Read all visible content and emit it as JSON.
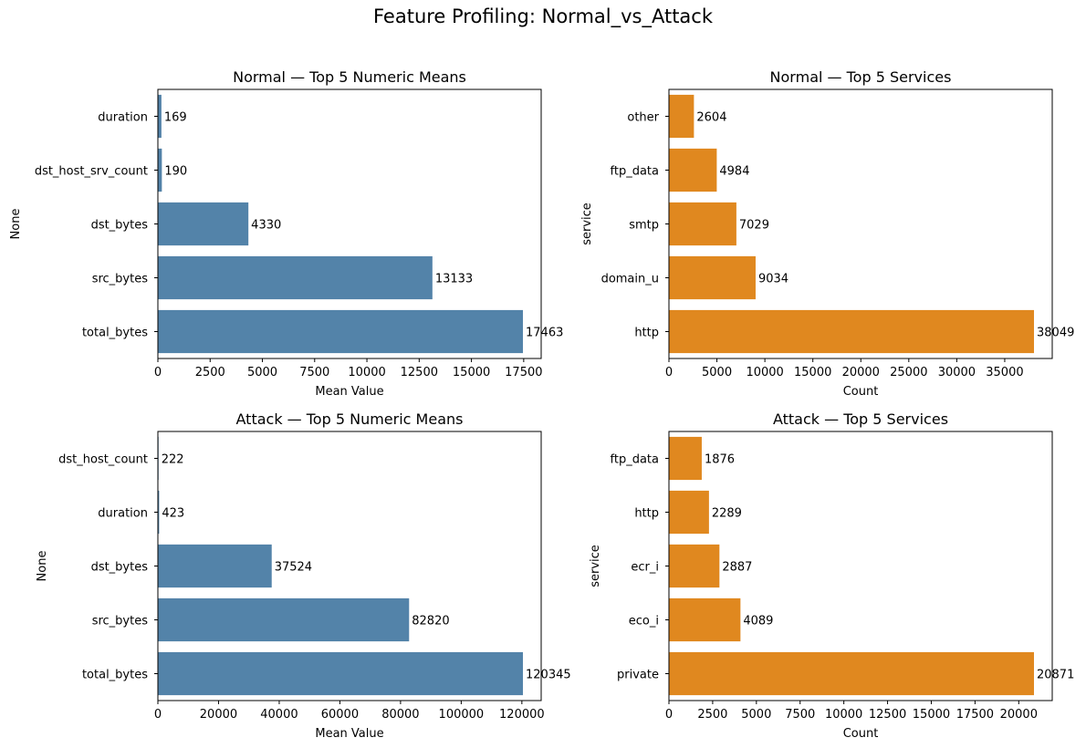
{
  "figure_title": "Feature Profiling: Normal_vs_Attack",
  "colors": {
    "numeric": "#5383a9",
    "services": "#e0881f"
  },
  "chart_data": [
    {
      "type": "bar",
      "orientation": "horizontal",
      "title": "Normal — Top 5 Numeric Means",
      "xlabel": "Mean Value",
      "ylabel": "None",
      "categories": [
        "duration",
        "dst_host_srv_count",
        "dst_bytes",
        "src_bytes",
        "total_bytes"
      ],
      "values": [
        169,
        190,
        4330,
        13133,
        17463
      ],
      "xlim": [
        0,
        18336
      ],
      "xticks": [
        0,
        2500,
        5000,
        7500,
        10000,
        12500,
        15000,
        17500
      ],
      "grid": false,
      "color": "#5383a9"
    },
    {
      "type": "bar",
      "orientation": "horizontal",
      "title": "Normal — Top 5 Services",
      "xlabel": "Count",
      "ylabel": "service",
      "categories": [
        "other",
        "ftp_data",
        "smtp",
        "domain_u",
        "http"
      ],
      "values": [
        2604,
        4984,
        7029,
        9034,
        38049
      ],
      "xlim": [
        0,
        39951
      ],
      "xticks": [
        0,
        5000,
        10000,
        15000,
        20000,
        25000,
        30000,
        35000
      ],
      "grid": false,
      "color": "#e0881f"
    },
    {
      "type": "bar",
      "orientation": "horizontal",
      "title": "Attack — Top 5 Numeric Means",
      "xlabel": "Mean Value",
      "ylabel": "None",
      "categories": [
        "dst_host_count",
        "duration",
        "dst_bytes",
        "src_bytes",
        "total_bytes"
      ],
      "values": [
        222,
        423,
        37524,
        82820,
        120345
      ],
      "xlim": [
        0,
        126362
      ],
      "xticks": [
        0,
        20000,
        40000,
        60000,
        80000,
        100000,
        120000
      ],
      "grid": false,
      "color": "#5383a9"
    },
    {
      "type": "bar",
      "orientation": "horizontal",
      "title": "Attack — Top 5 Services",
      "xlabel": "Count",
      "ylabel": "service",
      "categories": [
        "ftp_data",
        "http",
        "ecr_i",
        "eco_i",
        "private"
      ],
      "values": [
        1876,
        2289,
        2887,
        4089,
        20871
      ],
      "xlim": [
        0,
        21915
      ],
      "xticks": [
        0,
        2500,
        5000,
        7500,
        10000,
        12500,
        15000,
        17500,
        20000
      ],
      "grid": false,
      "color": "#e0881f"
    }
  ]
}
